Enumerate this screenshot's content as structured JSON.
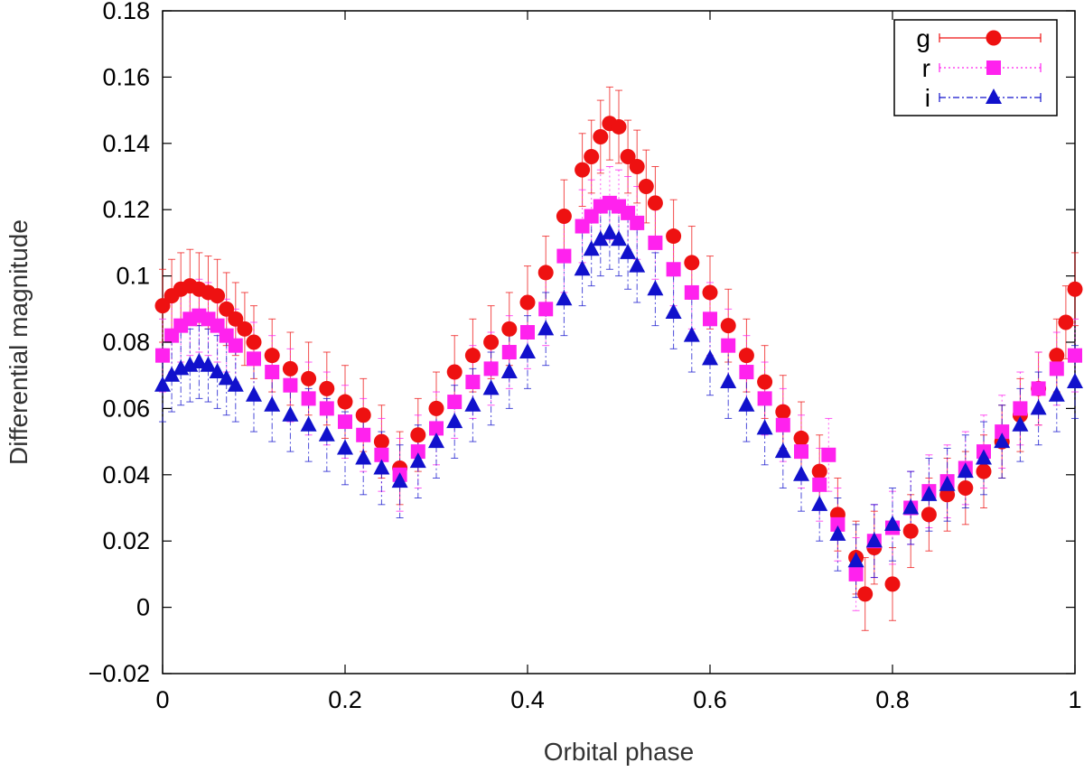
{
  "chart_data": {
    "type": "scatter",
    "title": "",
    "xlabel": "Orbital phase",
    "ylabel": "Differential magnitude",
    "xlim": [
      0,
      1
    ],
    "ylim": [
      -0.02,
      0.18
    ],
    "grid": false,
    "legend_position": "top-right",
    "x_ticks": [
      "0",
      "0.2",
      "0.4",
      "0.6",
      "0.8",
      "1"
    ],
    "y_ticks": [
      "−0.02",
      "0",
      "0.02",
      "0.04",
      "0.06",
      "0.08",
      "0.1",
      "0.12",
      "0.14",
      "0.16",
      "0.18"
    ],
    "series": [
      {
        "name": "g",
        "color": "#ee1111",
        "marker": "circle",
        "line_style": "solid",
        "error": 0.011,
        "x": [
          0.0,
          0.01,
          0.02,
          0.03,
          0.04,
          0.05,
          0.06,
          0.07,
          0.08,
          0.09,
          0.1,
          0.12,
          0.14,
          0.16,
          0.18,
          0.2,
          0.22,
          0.24,
          0.26,
          0.28,
          0.3,
          0.32,
          0.34,
          0.36,
          0.38,
          0.4,
          0.42,
          0.44,
          0.46,
          0.47,
          0.48,
          0.49,
          0.5,
          0.51,
          0.52,
          0.53,
          0.54,
          0.56,
          0.58,
          0.6,
          0.62,
          0.64,
          0.66,
          0.68,
          0.7,
          0.72,
          0.74,
          0.76,
          0.77,
          0.78,
          0.8,
          0.82,
          0.84,
          0.86,
          0.88,
          0.9,
          0.92,
          0.94,
          0.96,
          0.98,
          0.99,
          1.0
        ],
        "y": [
          0.091,
          0.094,
          0.096,
          0.097,
          0.096,
          0.095,
          0.094,
          0.09,
          0.087,
          0.084,
          0.08,
          0.076,
          0.072,
          0.069,
          0.066,
          0.062,
          0.058,
          0.05,
          0.042,
          0.052,
          0.06,
          0.071,
          0.076,
          0.08,
          0.084,
          0.092,
          0.101,
          0.118,
          0.132,
          0.136,
          0.142,
          0.146,
          0.145,
          0.136,
          0.133,
          0.127,
          0.122,
          0.112,
          0.104,
          0.095,
          0.085,
          0.076,
          0.068,
          0.059,
          0.051,
          0.041,
          0.028,
          0.015,
          0.004,
          0.018,
          0.007,
          0.023,
          0.028,
          0.034,
          0.036,
          0.041,
          0.05,
          0.058,
          0.066,
          0.076,
          0.086,
          0.096
        ]
      },
      {
        "name": "r",
        "color": "#ff22ee",
        "marker": "square",
        "line_style": "dotted",
        "error": 0.011,
        "x": [
          0.0,
          0.01,
          0.02,
          0.03,
          0.04,
          0.05,
          0.06,
          0.07,
          0.08,
          0.1,
          0.12,
          0.14,
          0.16,
          0.18,
          0.2,
          0.22,
          0.24,
          0.26,
          0.28,
          0.3,
          0.32,
          0.34,
          0.36,
          0.38,
          0.4,
          0.42,
          0.44,
          0.46,
          0.47,
          0.48,
          0.49,
          0.5,
          0.51,
          0.52,
          0.54,
          0.56,
          0.58,
          0.6,
          0.62,
          0.64,
          0.66,
          0.68,
          0.7,
          0.72,
          0.73,
          0.74,
          0.76,
          0.78,
          0.8,
          0.82,
          0.84,
          0.86,
          0.88,
          0.9,
          0.92,
          0.94,
          0.96,
          0.98,
          1.0
        ],
        "y": [
          0.076,
          0.082,
          0.085,
          0.087,
          0.088,
          0.087,
          0.085,
          0.082,
          0.079,
          0.075,
          0.071,
          0.067,
          0.063,
          0.06,
          0.056,
          0.052,
          0.046,
          0.04,
          0.047,
          0.054,
          0.062,
          0.068,
          0.072,
          0.077,
          0.083,
          0.09,
          0.106,
          0.115,
          0.118,
          0.121,
          0.122,
          0.121,
          0.119,
          0.116,
          0.11,
          0.102,
          0.095,
          0.087,
          0.079,
          0.071,
          0.063,
          0.055,
          0.047,
          0.037,
          0.046,
          0.025,
          0.01,
          0.02,
          0.024,
          0.03,
          0.035,
          0.038,
          0.042,
          0.047,
          0.053,
          0.06,
          0.066,
          0.072,
          0.076
        ]
      },
      {
        "name": "i",
        "color": "#1111cc",
        "marker": "triangle",
        "line_style": "dash-dot",
        "error": 0.011,
        "x": [
          0.0,
          0.01,
          0.02,
          0.03,
          0.04,
          0.05,
          0.06,
          0.07,
          0.08,
          0.1,
          0.12,
          0.14,
          0.16,
          0.18,
          0.2,
          0.22,
          0.24,
          0.26,
          0.28,
          0.3,
          0.32,
          0.34,
          0.36,
          0.38,
          0.4,
          0.42,
          0.44,
          0.46,
          0.47,
          0.48,
          0.49,
          0.5,
          0.51,
          0.52,
          0.54,
          0.56,
          0.58,
          0.6,
          0.62,
          0.64,
          0.66,
          0.68,
          0.7,
          0.72,
          0.74,
          0.76,
          0.78,
          0.8,
          0.82,
          0.84,
          0.86,
          0.88,
          0.9,
          0.92,
          0.94,
          0.96,
          0.98,
          1.0
        ],
        "y": [
          0.067,
          0.07,
          0.072,
          0.073,
          0.074,
          0.073,
          0.071,
          0.069,
          0.067,
          0.064,
          0.061,
          0.058,
          0.055,
          0.052,
          0.048,
          0.045,
          0.042,
          0.038,
          0.044,
          0.05,
          0.056,
          0.061,
          0.066,
          0.071,
          0.077,
          0.084,
          0.093,
          0.102,
          0.108,
          0.111,
          0.113,
          0.111,
          0.107,
          0.103,
          0.096,
          0.089,
          0.082,
          0.075,
          0.068,
          0.061,
          0.054,
          0.047,
          0.04,
          0.031,
          0.022,
          0.014,
          0.02,
          0.025,
          0.03,
          0.034,
          0.037,
          0.041,
          0.045,
          0.05,
          0.055,
          0.06,
          0.064,
          0.068
        ]
      }
    ]
  }
}
